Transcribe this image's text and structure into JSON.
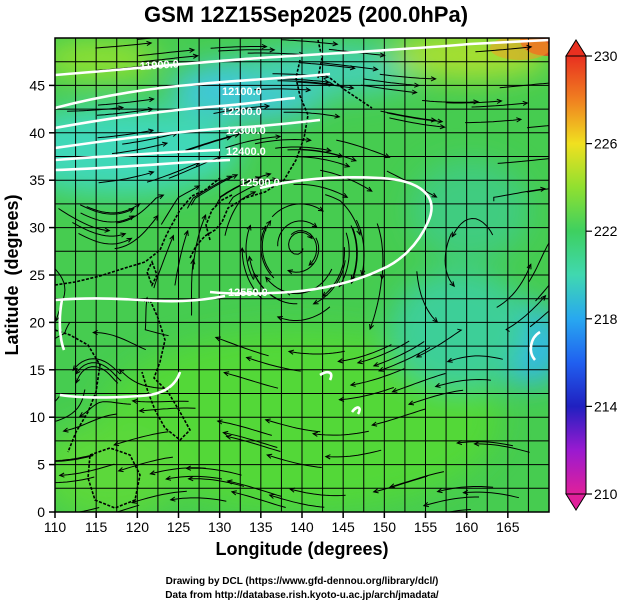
{
  "chart_data": {
    "type": "heatmap",
    "title": "GSM 12Z15Sep2025 (200.0hPa)",
    "xlabel": "Longitude (degrees)",
    "ylabel": "Latitude  (degrees)",
    "xlim": [
      110,
      170
    ],
    "ylim": [
      0,
      50
    ],
    "xticks": [
      110,
      115,
      120,
      125,
      130,
      135,
      140,
      145,
      150,
      155,
      160,
      165
    ],
    "yticks": [
      0,
      5,
      10,
      15,
      20,
      25,
      30,
      35,
      40,
      45
    ],
    "colorbar": {
      "min": 210,
      "max": 230,
      "ticks": [
        230,
        226,
        222,
        218,
        214,
        210
      ],
      "stops": [
        {
          "value": 210,
          "color": "#e0209a"
        },
        {
          "value": 212,
          "color": "#9a1ad0"
        },
        {
          "value": 214,
          "color": "#2020c0"
        },
        {
          "value": 216,
          "color": "#2060f0"
        },
        {
          "value": 218,
          "color": "#28a8f0"
        },
        {
          "value": 220,
          "color": "#40d8b0"
        },
        {
          "value": 222,
          "color": "#3ed060"
        },
        {
          "value": 224,
          "color": "#90e030"
        },
        {
          "value": 226,
          "color": "#f0e020"
        },
        {
          "value": 228,
          "color": "#f08020"
        },
        {
          "value": 230,
          "color": "#e83020"
        }
      ]
    },
    "contour_labels": [
      {
        "text": "11900.0"
      },
      {
        "text": "12100.0"
      },
      {
        "text": "12200.0"
      },
      {
        "text": "12300.0"
      },
      {
        "text": "12400.0"
      },
      {
        "text": "12500.0"
      },
      {
        "text": "12550.0"
      }
    ],
    "field_description": "Temperature (K) shaded; geopotential height contours (white); wind streamlines (black)"
  },
  "credits": {
    "line1": "Drawing by DCL (https://www.gfd-dennou.org/library/dcl/)",
    "line2": "Data from http://database.rish.kyoto-u.ac.jp/arch/jmadata/"
  }
}
